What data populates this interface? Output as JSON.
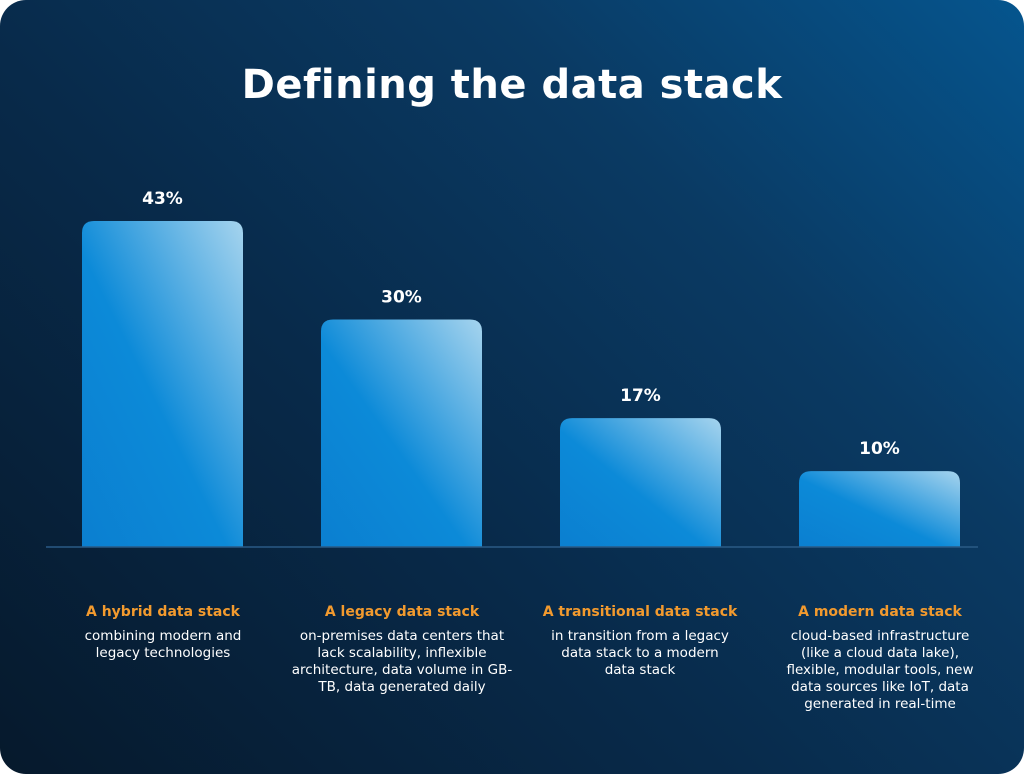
{
  "chart_data": {
    "type": "bar",
    "title": "Defining the data stack",
    "categories": [
      "A hybrid data stack",
      "A legacy data stack",
      "A transitional data stack",
      "A modern data stack"
    ],
    "descriptions": [
      "combining modern and legacy technologies",
      "on-premises data centers that lack scalability, inflexible architecture, data volume in GB-TB, data generated daily",
      "in transition from a legacy data stack to a modern data stack",
      "cloud-based infrastructure (like a cloud data lake), flexible, modular tools, new data sources like IoT, data generated in real-time"
    ],
    "values": [
      43,
      30,
      17,
      10
    ],
    "value_labels": [
      "43%",
      "30%",
      "17%",
      "10%"
    ],
    "ylim": [
      0,
      43
    ],
    "grid": false,
    "legend": "none"
  },
  "colors": {
    "bar_dark": "#0a84d6",
    "bar_light": "#a9d6ef",
    "category_label": "#f29a2e",
    "text": "#ffffff",
    "baseline": "#2a5a85"
  }
}
